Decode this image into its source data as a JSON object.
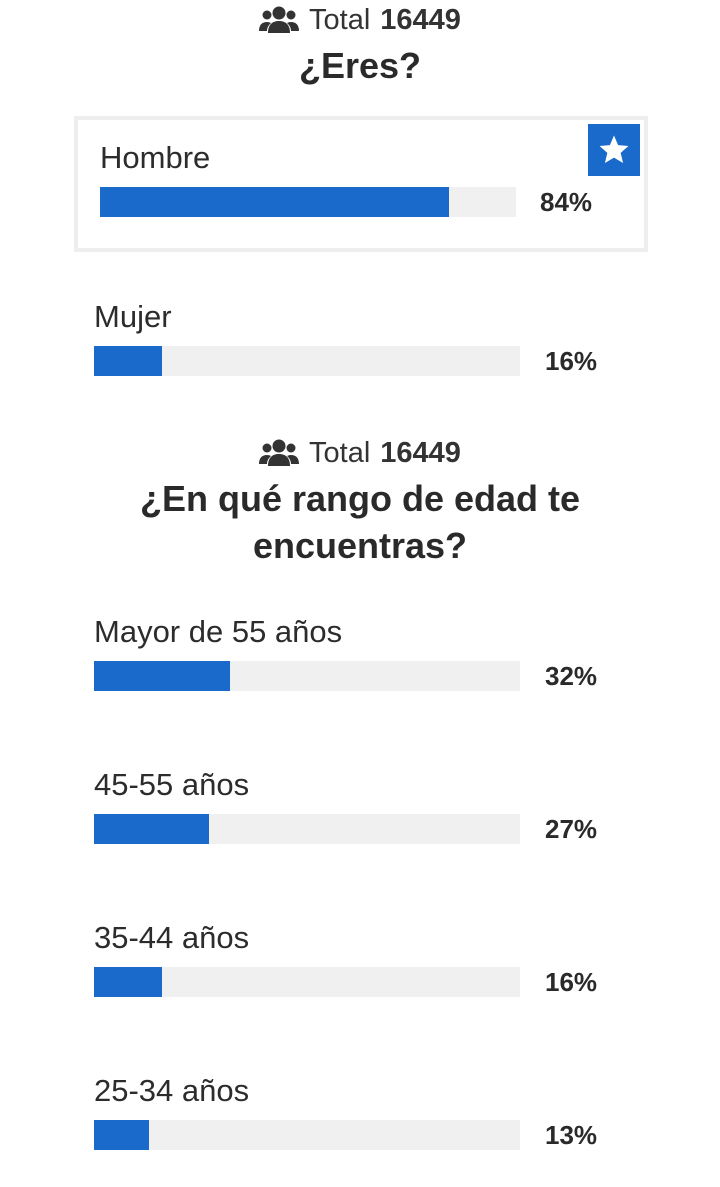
{
  "chart_data": [
    {
      "type": "bar",
      "title": "¿Eres?",
      "total_label": "Total",
      "total": "16449",
      "categories": [
        "Hombre",
        "Mujer"
      ],
      "values": [
        84,
        16
      ],
      "value_labels": [
        "84%",
        "16%"
      ],
      "selected_index": 0,
      "ylim": [
        0,
        100
      ]
    },
    {
      "type": "bar",
      "title": "¿En qué rango de edad te encuentras?",
      "total_label": "Total",
      "total": "16449",
      "categories": [
        "Mayor de 55 años",
        "45-55 años",
        "35-44 años",
        "25-34 años"
      ],
      "values": [
        32,
        27,
        16,
        13
      ],
      "value_labels": [
        "32%",
        "27%",
        "16%",
        "13%"
      ],
      "ylim": [
        0,
        100
      ]
    }
  ],
  "colors": {
    "bar_fill": "#1a6acb",
    "bar_track": "#f0f0f0",
    "selected_border": "#eeeeee"
  },
  "icons": {
    "total": "people-icon",
    "selected": "star-icon"
  }
}
